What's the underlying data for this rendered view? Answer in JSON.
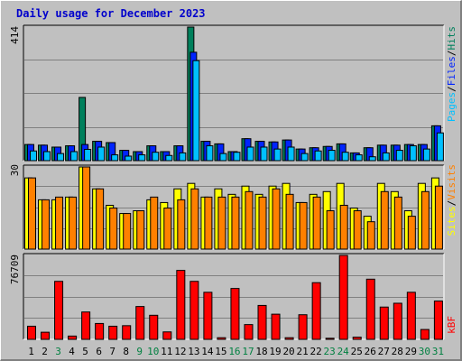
{
  "page_title": "Daily usage for December 2023",
  "colors": {
    "pages": "#00805c",
    "files": "#0024ff",
    "hits": "#00c0ff",
    "visits": "#ffff00",
    "sites": "#ff8000",
    "kbytes": "#ff0000",
    "weekday_label": "#000000",
    "weekend_label": "#008040"
  },
  "chart_data": [
    {
      "type": "bar",
      "title": "Daily usage for December 2023",
      "categories": [
        "1",
        "2",
        "3",
        "4",
        "5",
        "6",
        "7",
        "8",
        "9",
        "10",
        "11",
        "12",
        "13",
        "14",
        "15",
        "16",
        "17",
        "18",
        "19",
        "20",
        "21",
        "22",
        "23",
        "24",
        "25",
        "26",
        "27",
        "28",
        "29",
        "30",
        "31"
      ],
      "weekend_days": [
        "3",
        "9",
        "10",
        "16",
        "17",
        "23",
        "24",
        "30",
        "31"
      ],
      "ymax_label": "414",
      "ylim": [
        0,
        414
      ],
      "legend": [
        "Pages",
        "/",
        "Files",
        "/",
        "Hits"
      ],
      "series": [
        {
          "name": "Pages",
          "values": [
            50,
            48,
            42,
            46,
            196,
            60,
            56,
            32,
            28,
            46,
            28,
            46,
            414,
            60,
            52,
            28,
            68,
            60,
            58,
            64,
            36,
            40,
            44,
            52,
            24,
            40,
            48,
            48,
            50,
            50,
            108
          ]
        },
        {
          "name": "Files",
          "values": [
            50,
            48,
            42,
            46,
            50,
            60,
            56,
            32,
            28,
            46,
            28,
            46,
            336,
            60,
            52,
            28,
            68,
            60,
            58,
            64,
            36,
            40,
            44,
            52,
            24,
            40,
            48,
            48,
            50,
            50,
            108
          ]
        },
        {
          "name": "Hits",
          "values": [
            30,
            28,
            22,
            28,
            35,
            42,
            18,
            14,
            18,
            26,
            16,
            24,
            310,
            46,
            22,
            26,
            42,
            42,
            36,
            42,
            22,
            30,
            32,
            26,
            18,
            12,
            24,
            32,
            46,
            36,
            86
          ]
        }
      ]
    },
    {
      "type": "bar",
      "ymax_label": "30",
      "ylim": [
        0,
        30
      ],
      "legend": [
        "Sites",
        "/",
        "Visits"
      ],
      "series": [
        {
          "name": "Visits",
          "values": [
            26,
            18,
            18,
            19,
            30,
            22,
            16,
            13,
            14,
            18,
            17,
            22,
            24,
            19,
            22,
            20,
            23,
            20,
            23,
            24,
            17,
            20,
            21,
            24,
            15,
            12,
            24,
            21,
            14,
            24,
            26
          ]
        },
        {
          "name": "Sites",
          "values": [
            26,
            18,
            19,
            19,
            31,
            22,
            15,
            13,
            14,
            19,
            15,
            18,
            22,
            19,
            19,
            19,
            21,
            19,
            22,
            20,
            17,
            19,
            14,
            16,
            14,
            10,
            21,
            19,
            12,
            21,
            23
          ]
        }
      ]
    },
    {
      "type": "bar",
      "ymax_label": "76709",
      "ylim": [
        0,
        76709
      ],
      "legend": [
        "kB",
        "F"
      ],
      "series": [
        {
          "name": "kB F",
          "values": [
            12000,
            6500,
            53000,
            3000,
            25000,
            14500,
            12000,
            12500,
            30000,
            22000,
            6800,
            63000,
            53000,
            43000,
            1500,
            46500,
            13500,
            31000,
            23000,
            1500,
            22500,
            51800,
            1000,
            76709,
            2000,
            55000,
            29500,
            33000,
            43000,
            9000,
            35000
          ]
        }
      ]
    }
  ]
}
